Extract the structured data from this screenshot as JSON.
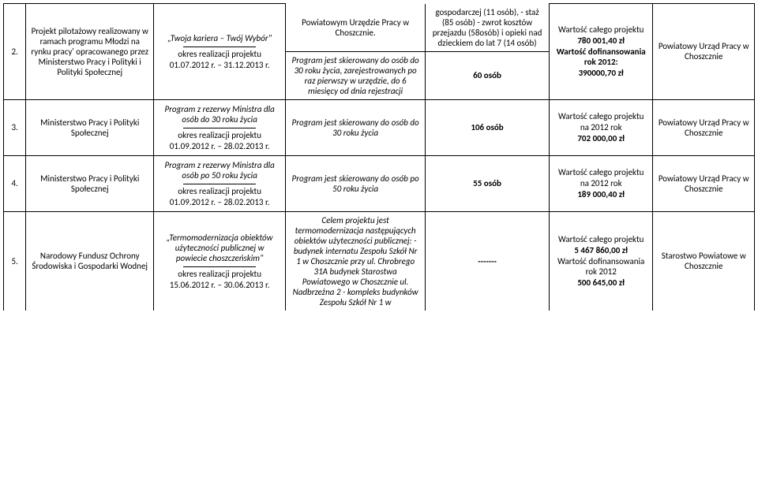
{
  "rowA": {
    "col4_top": "Powiatowym Urzędzie Pracy w Choszcznie.",
    "col5_top": "gospodarczej (11 osób), - staż (85 osób) - zwrot kosztów przejazdu (58osób) i opieki nad dzieckiem do lat 7 (14 osób)"
  },
  "row2": {
    "num": "2.",
    "col2": "Projekt pilotażowy realizowany w ramach programu Młodzi na rynku pracy' opracowanego przez Ministerstwo Pracy i Polityki i Polityki Społecznej",
    "col3_title": "„Twoja kariera – Twój Wybór\"",
    "col3_period_label": "okres realizacji projektu",
    "col3_period_value": "01.07.2012 r. – 31.12.2013 r.",
    "col4": "Program jest skierowany do osób do 30 roku życia, zarejestrowanych  po raz pierwszy w urzędzie, do 6 miesięcy od dnia rejestracji",
    "col5": "60 osób",
    "col6_l1": "Wartość całego projektu",
    "col6_l2": "780 001,40 zł",
    "col6_l3": "Wartość dofinansowania rok 2012:",
    "col6_l4": "390000,70 zł",
    "col7": "Powiatowy Urząd Pracy w Choszcznie"
  },
  "row3": {
    "num": "3.",
    "col2": "Ministerstwo Pracy i Polityki Społecznej",
    "col3_title": "Program z rezerwy Ministra dla osób do 30 roku życia",
    "col3_period_label": "okres realizacji projektu",
    "col3_period_value": "01.09.2012 r. – 28.02.2013 r.",
    "col4": "Program jest skierowany do osób do 30 roku życia",
    "col5": "106 osób",
    "col6_l1": "Wartość całego projektu",
    "col6_l2": "na 2012 rok",
    "col6_l3": "702 000,00 zł",
    "col7": "Powiatowy Urząd Pracy w Choszcznie"
  },
  "row4": {
    "num": "4.",
    "col2": "Ministerstwo Pracy i Polityki Społecznej",
    "col3_title": "Program z rezerwy Ministra dla osób po 50 roku życia",
    "col3_period_label": "okres realizacji projektu",
    "col3_period_value": "01.09.2012 r. – 28.02.2013 r.",
    "col4": "Program jest skierowany do osób po 50 roku życia",
    "col5": "55 osób",
    "col6_l1": "Wartość całego projektu",
    "col6_l2": "na 2012 rok",
    "col6_l3": "189 000,40 zł",
    "col7": "Powiatowy Urząd Pracy w Choszcznie"
  },
  "row5": {
    "num": "5.",
    "col2": "Narodowy Fundusz Ochrony Środowiska i Gospodarki Wodnej",
    "col3_title": "„Termomodernizacja obiektów użyteczności publicznej w powiecie choszczeńskim\"",
    "col3_period_label": "okres realizacji projektu",
    "col3_period_value": "15.06.2012 r. – 30.06.2013 r.",
    "col4": "Celem projektu jest termomodernizacja następujących obiektów użyteczności publicznej: -budynek internatu Zespołu Szkół Nr 1 w Choszcznie przy ul. Chrobrego 31A budynek Starostwa Powiatowego w Choszcznie ul. Nadbrzeżna 2 - kompleks budynków Zespołu Szkół Nr 1 w",
    "col5": "-------",
    "col6_l1": "Wartość całego projektu",
    "col6_l2": "5 467  860,00 zł",
    "col6_l3": "Wartość dofinansowania rok 2012",
    "col6_l4": "500 645,00 zł",
    "col7": "Starostwo Powiatowe w Choszcznie"
  }
}
